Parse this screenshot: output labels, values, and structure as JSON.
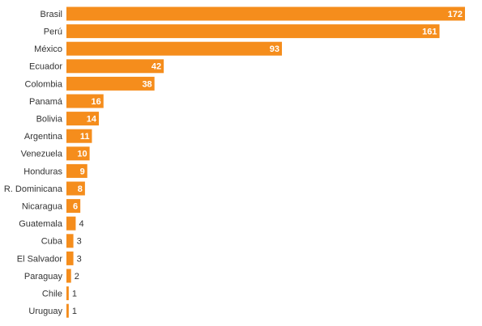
{
  "chart_data": {
    "type": "bar",
    "orientation": "horizontal",
    "categories": [
      "Brasil",
      "Perú",
      "México",
      "Ecuador",
      "Colombia",
      "Panamá",
      "Bolivia",
      "Argentina",
      "Venezuela",
      "Honduras",
      "R. Dominicana",
      "Nicaragua",
      "Guatemala",
      "Cuba",
      "El Salvador",
      "Paraguay",
      "Chile",
      "Uruguay"
    ],
    "values": [
      172,
      161,
      93,
      42,
      38,
      16,
      14,
      11,
      10,
      9,
      8,
      6,
      4,
      3,
      3,
      2,
      1,
      1
    ],
    "color": "#f58d1c"
  }
}
